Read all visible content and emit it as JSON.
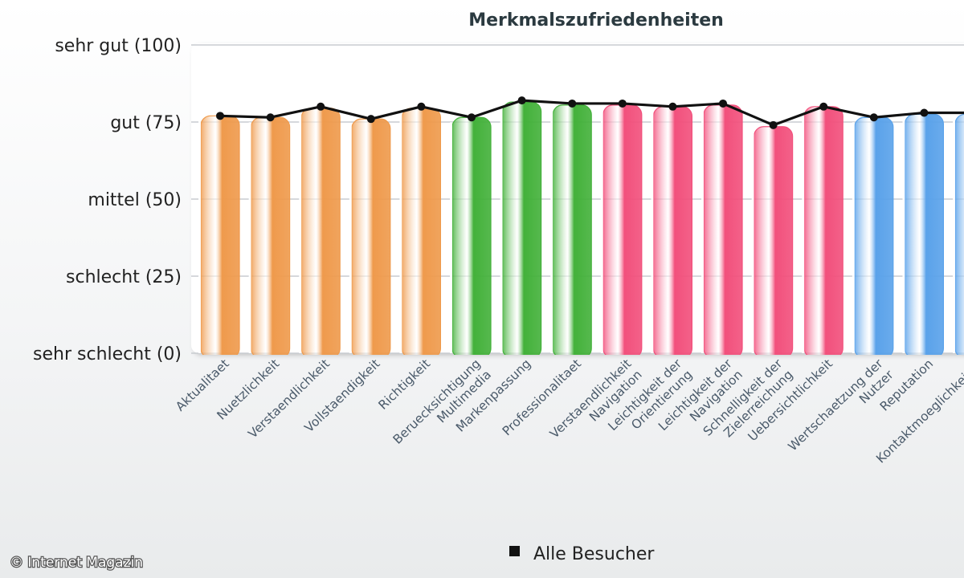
{
  "chart_data": {
    "type": "bar",
    "title": "Merkmalszufriedenheiten",
    "ylim": [
      0,
      100
    ],
    "y_ticks": [
      {
        "value": 100,
        "label": "sehr gut (100)"
      },
      {
        "value": 75,
        "label": "gut (75)"
      },
      {
        "value": 50,
        "label": "mittel (50)"
      },
      {
        "value": 25,
        "label": "schlecht (25)"
      },
      {
        "value": 0,
        "label": "sehr schlecht (0)"
      }
    ],
    "grid": true,
    "categories": [
      [
        "Aktualitaet"
      ],
      [
        "Nuetzlichkeit"
      ],
      [
        "Verstaendlichkeit"
      ],
      [
        "Vollstaendigkeit"
      ],
      [
        "Richtigkeit"
      ],
      [
        "Beruecksichtigung",
        "Multimedia"
      ],
      [
        "Markenpassung"
      ],
      [
        "Professionalitaet"
      ],
      [
        "Verstaendlichkeit",
        "Navigation"
      ],
      [
        "Leichtigkeit der",
        "Orientierung"
      ],
      [
        "Leichtigkeit der",
        "Navigation"
      ],
      [
        "Schnelligkeit der",
        "Zielerreichung"
      ],
      [
        "Uebersichtlichkeit"
      ],
      [
        "Wertschaetzung der",
        "Nutzer"
      ],
      [
        "Reputation"
      ],
      [
        "Kontaktmoeglichkeiten"
      ]
    ],
    "bar_values": [
      77,
      76.5,
      79.5,
      76,
      79.5,
      76.5,
      81.5,
      80.5,
      80.5,
      80,
      80.5,
      73.5,
      80,
      76.5,
      77.5,
      77.5
    ],
    "bar_colors": [
      "#ef9a4c",
      "#ef9a4c",
      "#ef9a4c",
      "#ef9a4c",
      "#ef9a4c",
      "#43b13a",
      "#43b13a",
      "#43b13a",
      "#f2507c",
      "#f2507c",
      "#f2507c",
      "#f2507c",
      "#f2507c",
      "#5aa2ea",
      "#5aa2ea",
      "#5aa2ea"
    ],
    "series": [
      {
        "name": "Alle Besucher",
        "type": "line",
        "color": "#111111",
        "values": [
          77,
          76.5,
          80,
          76,
          80,
          76.5,
          82,
          81,
          81,
          80,
          81,
          74,
          80,
          76.5,
          78,
          78
        ]
      }
    ],
    "legend": "bottom-center"
  },
  "credit": "© Internet Magazin"
}
